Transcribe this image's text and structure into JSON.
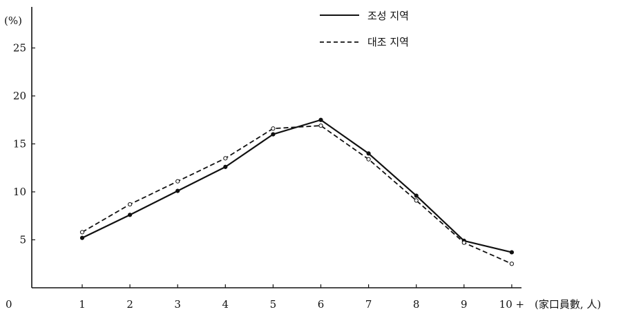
{
  "chart_data": {
    "type": "line",
    "title": "",
    "xlabel": "(家口員數, 人)",
    "ylabel": "(%)",
    "origin_label": "0",
    "categories": [
      "1",
      "2",
      "3",
      "4",
      "5",
      "6",
      "7",
      "8",
      "9",
      "10 +"
    ],
    "yticks": [
      "5",
      "10",
      "15",
      "20",
      "25"
    ],
    "ylim": [
      0,
      30
    ],
    "grid": false,
    "legend_position": "top-center",
    "series": [
      {
        "name": "조성 지역",
        "style": "solid",
        "color": "#111111",
        "values": [
          5.2,
          7.6,
          10.1,
          12.6,
          16.0,
          17.5,
          14.0,
          9.6,
          4.9,
          3.7
        ]
      },
      {
        "name": "대조 지역",
        "style": "dashed",
        "color": "#111111",
        "values": [
          5.8,
          8.7,
          11.1,
          13.5,
          16.6,
          16.9,
          13.4,
          9.1,
          4.7,
          2.5
        ]
      }
    ]
  }
}
